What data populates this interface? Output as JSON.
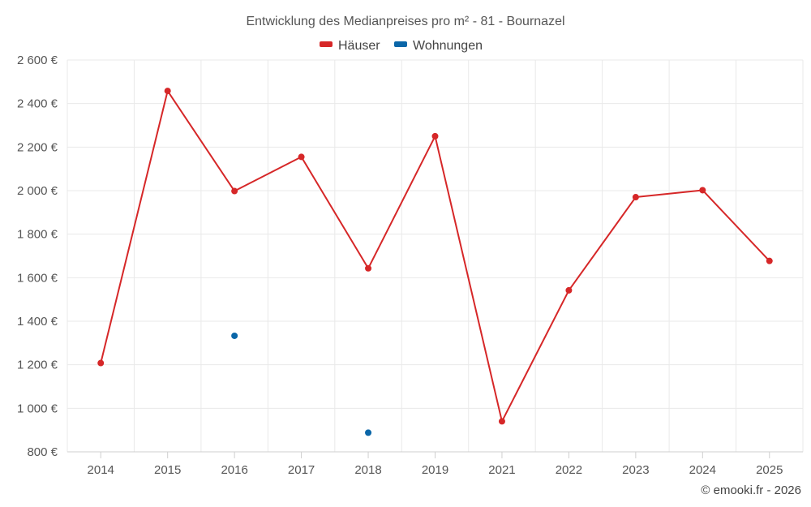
{
  "chart_data": {
    "type": "line",
    "title": "Entwicklung des Medianpreises pro m² - 81 - Bournazel",
    "categories": [
      "2014",
      "2015",
      "2016",
      "2017",
      "2018",
      "2019",
      "2021",
      "2022",
      "2023",
      "2024",
      "2025"
    ],
    "y_ticks": [
      "800 €",
      "1 000 €",
      "1 200 €",
      "1 400 €",
      "1 600 €",
      "1 800 €",
      "2 000 €",
      "2 200 €",
      "2 400 €",
      "2 600 €"
    ],
    "ylim": [
      800,
      2600
    ],
    "grid": true,
    "legend_position": "top-center",
    "series": [
      {
        "name": "Häuser",
        "color": "#d62728",
        "values": [
          1208,
          2458,
          1998,
          2155,
          1643,
          2250,
          940,
          1542,
          1970,
          2002,
          1677
        ]
      },
      {
        "name": "Wohnungen",
        "color": "#0a66a8",
        "values": [
          null,
          null,
          1333,
          null,
          888,
          null,
          null,
          null,
          null,
          null,
          null
        ]
      }
    ],
    "credit": "© emooki.fr - 2026"
  }
}
